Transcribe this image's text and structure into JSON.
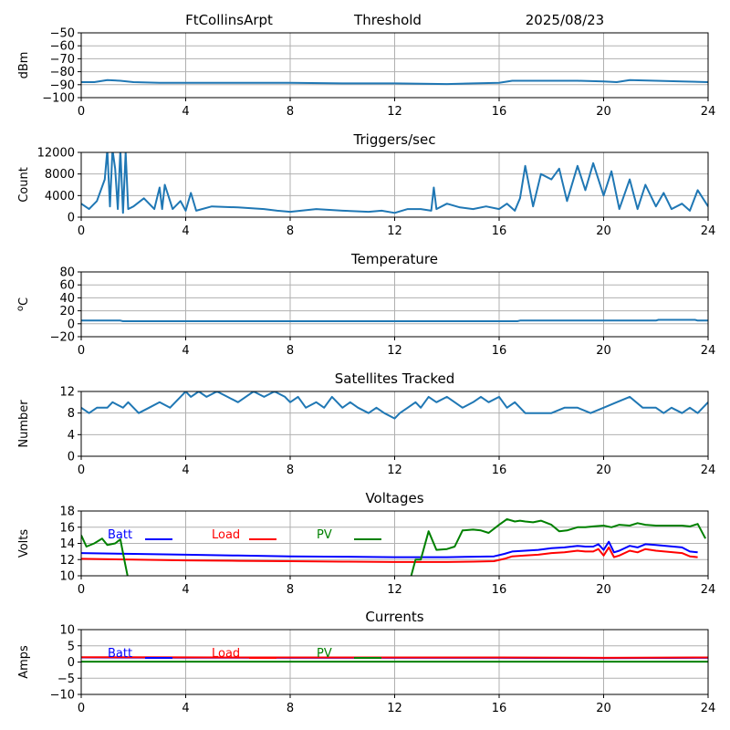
{
  "header": {
    "station": "FtCollinsArpt",
    "mode": "Threshold",
    "date": "2025/08/23"
  },
  "colors": {
    "series": "#1f77b4",
    "batt": "#0000ff",
    "load": "#ff0000",
    "pv": "#008000",
    "grid": "#b0b0b0"
  },
  "chart_data": [
    {
      "id": "threshold",
      "type": "line",
      "title": "",
      "ylabel": "dBm",
      "xlim": [
        0,
        24
      ],
      "ylim": [
        -100,
        -50
      ],
      "xticks": [
        0,
        4,
        8,
        12,
        16,
        20,
        24
      ],
      "yticks": [
        -100,
        -90,
        -80,
        -70,
        -60,
        -50
      ],
      "grid": true,
      "series": [
        {
          "color": "#1f77b4",
          "x": [
            0,
            0.5,
            1.0,
            1.5,
            2.0,
            3,
            4,
            6,
            8,
            10,
            12,
            14,
            15,
            16,
            16.5,
            17,
            18,
            19,
            20,
            20.5,
            21,
            22,
            23,
            24
          ],
          "y": [
            -88,
            -88,
            -86.5,
            -87,
            -88,
            -88.5,
            -88.5,
            -88.5,
            -88.5,
            -89,
            -89,
            -89.5,
            -89,
            -88.5,
            -87,
            -87,
            -87,
            -87,
            -87.5,
            -88,
            -86.5,
            -87,
            -87.5,
            -88
          ]
        }
      ]
    },
    {
      "id": "triggers",
      "type": "line",
      "title": "Triggers/sec",
      "ylabel": "Count",
      "xlim": [
        0,
        24
      ],
      "ylim": [
        0,
        12000
      ],
      "xticks": [
        0,
        4,
        8,
        12,
        16,
        20,
        24
      ],
      "yticks": [
        0,
        4000,
        8000,
        12000
      ],
      "grid": true,
      "series": [
        {
          "color": "#1f77b4",
          "x": [
            0,
            0.3,
            0.6,
            0.9,
            1.0,
            1.1,
            1.2,
            1.3,
            1.4,
            1.5,
            1.6,
            1.7,
            1.8,
            2.0,
            2.4,
            2.8,
            3.0,
            3.1,
            3.2,
            3.5,
            3.8,
            4.0,
            4.2,
            4.4,
            5.0,
            6.0,
            7.0,
            7.5,
            8.0,
            9.0,
            10.0,
            11.0,
            11.5,
            12.0,
            12.5,
            13.0,
            13.4,
            13.5,
            13.6,
            14.0,
            14.5,
            15.0,
            15.5,
            16.0,
            16.3,
            16.6,
            16.8,
            17.0,
            17.3,
            17.6,
            18.0,
            18.3,
            18.6,
            19.0,
            19.3,
            19.6,
            20.0,
            20.3,
            20.6,
            21.0,
            21.3,
            21.6,
            22.0,
            22.3,
            22.6,
            23.0,
            23.3,
            23.6,
            24.0
          ],
          "y": [
            2500,
            1500,
            3000,
            7000,
            12500,
            2000,
            12500,
            9000,
            1500,
            12500,
            800,
            12000,
            1500,
            2000,
            3500,
            1500,
            5500,
            1500,
            6000,
            1500,
            3000,
            1200,
            4500,
            1200,
            2000,
            1800,
            1500,
            1200,
            1000,
            1500,
            1200,
            1000,
            1200,
            800,
            1500,
            1500,
            1200,
            5500,
            1500,
            2500,
            1800,
            1500,
            2000,
            1500,
            2500,
            1200,
            3500,
            9500,
            2000,
            8000,
            7000,
            9000,
            3000,
            9500,
            5000,
            10000,
            4000,
            8500,
            1500,
            7000,
            1500,
            6000,
            2000,
            4500,
            1500,
            2500,
            1200,
            5000,
            2000
          ]
        }
      ]
    },
    {
      "id": "temperature",
      "type": "line",
      "title": "Temperature",
      "ylabel": "oC",
      "xlim": [
        0,
        24
      ],
      "ylim": [
        -20,
        80
      ],
      "xticks": [
        0,
        4,
        8,
        12,
        16,
        20,
        24
      ],
      "yticks": [
        -20,
        0,
        20,
        40,
        60,
        80
      ],
      "grid": true,
      "series": [
        {
          "color": "#1f77b4",
          "x": [
            0,
            1.5,
            1.6,
            8,
            12,
            16.7,
            16.8,
            20,
            22,
            22.1,
            23.5,
            23.6,
            24
          ],
          "y": [
            5,
            5,
            4,
            4,
            4,
            4,
            5,
            5,
            5,
            6,
            6,
            5,
            5
          ]
        }
      ]
    },
    {
      "id": "satellites",
      "type": "line",
      "title": "Satellites Tracked",
      "ylabel": "Number",
      "xlim": [
        0,
        24
      ],
      "ylim": [
        0,
        12
      ],
      "xticks": [
        0,
        4,
        8,
        12,
        16,
        20,
        24
      ],
      "yticks": [
        0,
        4,
        8,
        12
      ],
      "grid": true,
      "series": [
        {
          "color": "#1f77b4",
          "x": [
            0,
            0.3,
            0.6,
            1.0,
            1.2,
            1.6,
            1.8,
            2.2,
            2.6,
            3.0,
            3.4,
            3.6,
            3.8,
            4.0,
            4.2,
            4.5,
            4.8,
            5.2,
            5.6,
            6.0,
            6.3,
            6.6,
            7.0,
            7.4,
            7.8,
            8.0,
            8.3,
            8.6,
            9.0,
            9.3,
            9.6,
            10.0,
            10.3,
            10.6,
            11.0,
            11.3,
            11.6,
            12.0,
            12.2,
            12.5,
            12.8,
            13.0,
            13.3,
            13.6,
            14.0,
            14.3,
            14.6,
            15.0,
            15.3,
            15.6,
            16.0,
            16.3,
            16.6,
            17.0,
            17.5,
            18.0,
            18.5,
            19.0,
            19.5,
            20.0,
            20.5,
            21.0,
            21.5,
            22.0,
            22.3,
            22.6,
            23.0,
            23.3,
            23.6,
            24.0
          ],
          "y": [
            9,
            8,
            9,
            9,
            10,
            9,
            10,
            8,
            9,
            10,
            9,
            10,
            11,
            12,
            11,
            12,
            11,
            12,
            11,
            10,
            11,
            12,
            11,
            12,
            11,
            10,
            11,
            9,
            10,
            9,
            11,
            9,
            10,
            9,
            8,
            9,
            8,
            7,
            8,
            9,
            10,
            9,
            11,
            10,
            11,
            10,
            9,
            10,
            11,
            10,
            11,
            9,
            10,
            8,
            8,
            8,
            9,
            9,
            8,
            9,
            10,
            11,
            9,
            9,
            8,
            9,
            8,
            9,
            8,
            10
          ]
        }
      ]
    },
    {
      "id": "voltages",
      "type": "line",
      "title": "Voltages",
      "ylabel": "Volts",
      "xlim": [
        0,
        24
      ],
      "ylim": [
        10,
        18
      ],
      "xticks": [
        0,
        4,
        8,
        12,
        16,
        20,
        24
      ],
      "yticks": [
        10,
        12,
        14,
        16,
        18
      ],
      "grid": true,
      "legend": "top-left, in-plot",
      "series": [
        {
          "name": "Batt",
          "color": "#0000ff",
          "x": [
            0,
            2,
            4,
            6,
            8,
            10,
            12,
            14,
            15,
            15.8,
            16.2,
            16.5,
            17,
            17.5,
            18,
            18.5,
            19,
            19.3,
            19.6,
            19.8,
            20.0,
            20.2,
            20.4,
            20.6,
            21.0,
            21.3,
            21.6,
            22,
            23,
            23.3,
            23.6
          ],
          "y": [
            12.8,
            12.7,
            12.6,
            12.5,
            12.4,
            12.35,
            12.3,
            12.3,
            12.35,
            12.4,
            12.7,
            13.0,
            13.1,
            13.2,
            13.4,
            13.5,
            13.7,
            13.6,
            13.6,
            13.9,
            13.2,
            14.2,
            12.9,
            13.1,
            13.7,
            13.5,
            13.9,
            13.8,
            13.5,
            13.0,
            12.9
          ]
        },
        {
          "name": "Load",
          "color": "#ff0000",
          "x": [
            0,
            2,
            4,
            6,
            8,
            10,
            12,
            14,
            15,
            15.8,
            16.2,
            16.5,
            17,
            17.5,
            18,
            18.5,
            19,
            19.3,
            19.6,
            19.8,
            20.0,
            20.2,
            20.4,
            20.6,
            21.0,
            21.3,
            21.6,
            22,
            23,
            23.3,
            23.6
          ],
          "y": [
            12.1,
            12.0,
            11.9,
            11.85,
            11.8,
            11.75,
            11.7,
            11.7,
            11.75,
            11.8,
            12.1,
            12.4,
            12.5,
            12.6,
            12.8,
            12.9,
            13.1,
            13.0,
            13.0,
            13.3,
            12.5,
            13.5,
            12.3,
            12.5,
            13.1,
            12.9,
            13.3,
            13.1,
            12.8,
            12.4,
            12.3
          ]
        },
        {
          "name": "PV",
          "color": "#008000",
          "x": [
            0,
            0.2,
            0.5,
            0.8,
            1.0,
            1.3,
            1.5,
            1.65,
            1.8,
            12.6,
            12.8,
            13.0,
            13.3,
            13.6,
            14.0,
            14.3,
            14.6,
            15.0,
            15.3,
            15.6,
            16.0,
            16.3,
            16.6,
            16.8,
            17.0,
            17.3,
            17.6,
            18.0,
            18.3,
            18.6,
            19.0,
            19.3,
            19.6,
            20.0,
            20.3,
            20.6,
            21.0,
            21.3,
            21.6,
            22,
            22.5,
            23,
            23.3,
            23.6,
            23.9
          ],
          "y": [
            15,
            13.6,
            14.0,
            14.6,
            13.8,
            14.0,
            14.5,
            12.0,
            9.6,
            9.6,
            12.0,
            12.0,
            15.5,
            13.2,
            13.3,
            13.6,
            15.6,
            15.7,
            15.6,
            15.3,
            16.3,
            17.0,
            16.7,
            16.8,
            16.7,
            16.6,
            16.8,
            16.3,
            15.5,
            15.6,
            16.0,
            16.0,
            16.1,
            16.2,
            16.0,
            16.3,
            16.2,
            16.5,
            16.3,
            16.2,
            16.2,
            16.2,
            16.1,
            16.4,
            14.6
          ]
        }
      ]
    },
    {
      "id": "currents",
      "type": "line",
      "title": "Currents",
      "ylabel": "Amps",
      "xlim": [
        0,
        24
      ],
      "ylim": [
        -10,
        10
      ],
      "xticks": [
        0,
        4,
        8,
        12,
        16,
        20,
        24
      ],
      "yticks": [
        -10,
        -5,
        0,
        5,
        10
      ],
      "grid": true,
      "legend": "top-left, in-plot",
      "series": [
        {
          "name": "Batt",
          "color": "#0000ff",
          "x": [
            0,
            4,
            8,
            12,
            16,
            20,
            24
          ],
          "y": [
            1.4,
            1.35,
            1.3,
            1.3,
            1.3,
            1.2,
            1.3
          ]
        },
        {
          "name": "Load",
          "color": "#ff0000",
          "x": [
            0,
            4,
            8,
            12,
            16,
            20,
            24
          ],
          "y": [
            1.5,
            1.45,
            1.4,
            1.4,
            1.4,
            1.3,
            1.4
          ]
        },
        {
          "name": "PV",
          "color": "#008000",
          "x": [
            0,
            4,
            8,
            12,
            16,
            20,
            24
          ],
          "y": [
            0.1,
            0.1,
            0.1,
            0.1,
            0.1,
            0.1,
            0.1
          ]
        }
      ]
    }
  ]
}
